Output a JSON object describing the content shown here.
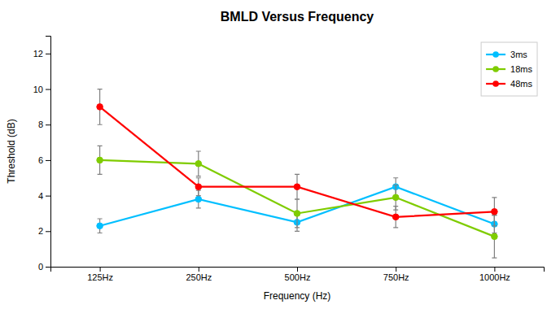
{
  "chart_data": {
    "type": "line",
    "title": "BMLD Versus Frequency",
    "xlabel": "Frequency (Hz)",
    "ylabel": "Threshold (dB)",
    "categories": [
      "125Hz",
      "250Hz",
      "500Hz",
      "750Hz",
      "1000Hz"
    ],
    "series": [
      {
        "name": "3ms",
        "color": "#00BFFF",
        "marker": "circle",
        "values": [
          2.3,
          3.8,
          2.5,
          4.5,
          2.4
        ],
        "errors": [
          0.4,
          0.5,
          0.5,
          0.5,
          0.5
        ]
      },
      {
        "name": "18ms",
        "color": "#7FCC00",
        "marker": "circle",
        "values": [
          6.0,
          5.8,
          3.0,
          3.9,
          1.7
        ],
        "errors": [
          0.8,
          0.7,
          0.8,
          0.7,
          1.2
        ]
      },
      {
        "name": "48ms",
        "color": "#FF0000",
        "marker": "circle",
        "values": [
          9.0,
          4.5,
          4.5,
          2.8,
          3.1
        ],
        "errors": [
          1.0,
          0.5,
          0.7,
          0.6,
          0.8
        ]
      }
    ],
    "ylim": [
      0,
      13
    ],
    "yticks": [
      0,
      2,
      4,
      6,
      8,
      10,
      12
    ],
    "grid": false,
    "legend": "upper right"
  }
}
